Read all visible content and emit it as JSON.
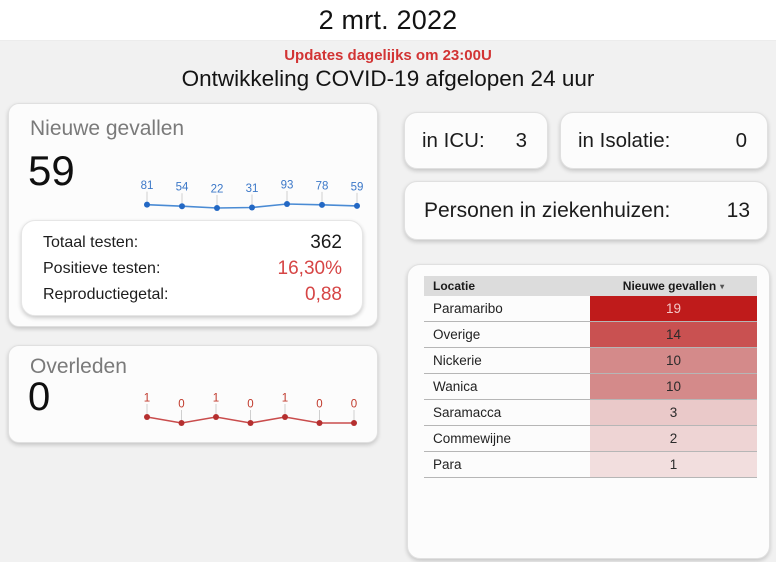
{
  "page": {
    "date_title": "2 mrt. 2022",
    "updates_notice": "Updates dagelijks om 23:00U",
    "subtitle": "Ontwikkeling COVID-19 afgelopen 24 uur"
  },
  "colors": {
    "accent_red": "#d23434",
    "value_red": "#d64545",
    "value_black": "#1a1a1a",
    "spark_blue_line": "#4a8bd4",
    "spark_blue_dot": "#2368c4",
    "spark_blue_label": "#3c78c8",
    "spark_red_line": "#c94c4c",
    "spark_red_dot": "#b52f2f",
    "spark_red_label": "#c0392b",
    "page_bg": "#f1f1f1",
    "card_bg": "#fcfcfc",
    "table_header_bg": "#dcdcdc"
  },
  "cards": {
    "new_cases": {
      "title": "Nieuwe gevallen",
      "value": "59",
      "stats": [
        {
          "label": "Totaal testen:",
          "value": "362",
          "value_color": "#1a1a1a"
        },
        {
          "label": "Positieve testen:",
          "value": "16,30%",
          "value_color": "#d64545"
        },
        {
          "label": "Reproductiegetal:",
          "value": "0,88",
          "value_color": "#d64545"
        }
      ]
    },
    "deaths": {
      "title": "Overleden",
      "value": "0"
    },
    "icu": {
      "label": "in ICU:",
      "value": "3"
    },
    "isolation": {
      "label": "in Isolatie:",
      "value": "0"
    },
    "hospitalized": {
      "label": "Personen in ziekenhuizen:",
      "value": "13"
    }
  },
  "table": {
    "sort_icon": "▾"
  },
  "chart_data": [
    {
      "type": "line",
      "name": "nieuwe-gevallen-sparkline",
      "title": "Nieuwe gevallen laatste 7 dagen",
      "values": [
        81,
        54,
        22,
        31,
        93,
        78,
        59
      ],
      "data_labels": true,
      "line_color": "#4a8bd4",
      "dot_color": "#2368c4",
      "label_color": "#3c78c8"
    },
    {
      "type": "line",
      "name": "overleden-sparkline",
      "title": "Overleden laatste 7 dagen",
      "values": [
        1,
        0,
        1,
        0,
        1,
        0,
        0
      ],
      "data_labels": true,
      "line_color": "#c94c4c",
      "dot_color": "#b52f2f",
      "label_color": "#c0392b"
    },
    {
      "type": "table",
      "name": "nieuwe-gevallen-per-locatie",
      "columns": [
        "Locatie",
        "Nieuwe gevallen"
      ],
      "rows": [
        {
          "location": "Paramaribo",
          "value": 19,
          "cell_color": "#bf1b1b",
          "text_color": "#f3c7c7"
        },
        {
          "location": "Overige",
          "value": 14,
          "cell_color": "#c95151",
          "text_color": "#2b2b2b"
        },
        {
          "location": "Nickerie",
          "value": 10,
          "cell_color": "#d48a8a",
          "text_color": "#2b2b2b"
        },
        {
          "location": "Wanica",
          "value": 10,
          "cell_color": "#d48a8a",
          "text_color": "#2b2b2b"
        },
        {
          "location": "Saramacca",
          "value": 3,
          "cell_color": "#eac9c9",
          "text_color": "#2b2b2b"
        },
        {
          "location": "Commewijne",
          "value": 2,
          "cell_color": "#eed4d4",
          "text_color": "#2b2b2b"
        },
        {
          "location": "Para",
          "value": 1,
          "cell_color": "#f2dede",
          "text_color": "#2b2b2b"
        }
      ]
    }
  ]
}
